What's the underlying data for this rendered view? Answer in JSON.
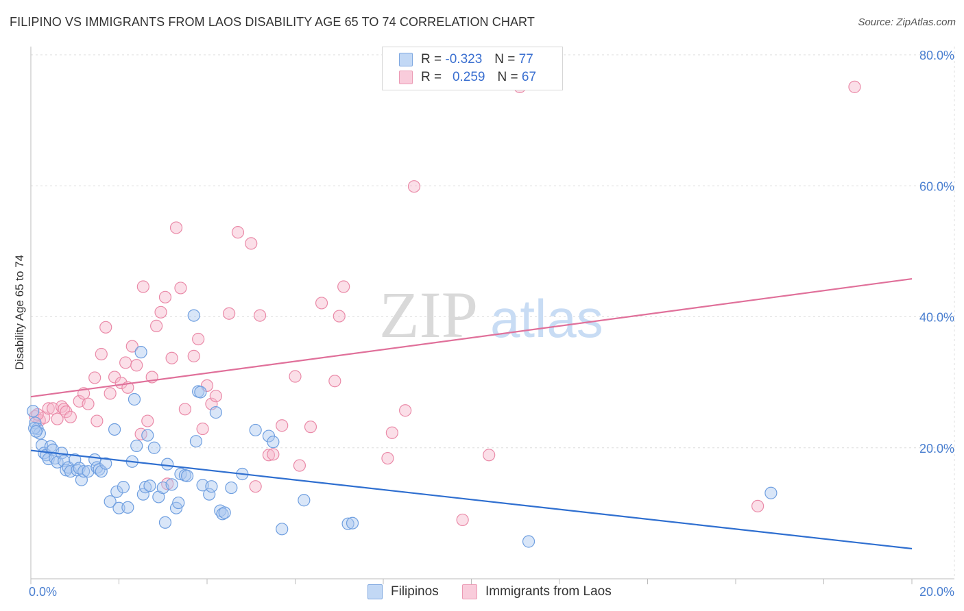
{
  "title": "FILIPINO VS IMMIGRANTS FROM LAOS DISABILITY AGE 65 TO 74 CORRELATION CHART",
  "source": "Source: ZipAtlas.com",
  "watermark": {
    "zip": "ZIP",
    "atlas": "atlas"
  },
  "colors": {
    "blue_fill": "#aac8f0",
    "blue_stroke": "#6f9fe0",
    "blue_line": "#2f6fd0",
    "pink_fill": "#f6b8cc",
    "pink_stroke": "#ea8aa8",
    "pink_line": "#e0709a",
    "grid": "#dcdcdc",
    "tick_text": "#4a7fd0"
  },
  "legend": {
    "r_label": "R =",
    "n_label": "N =",
    "rows": [
      {
        "r": "-0.323",
        "n": "77"
      },
      {
        "r": "0.259",
        "n": "67"
      }
    ]
  },
  "bottom_legend": [
    "Filipinos",
    "Immigrants from Laos"
  ],
  "chart_data": {
    "type": "scatter",
    "xlabel": "",
    "ylabel": "Disability Age 65 to 74",
    "xlim": [
      0,
      20
    ],
    "ylim": [
      0,
      80
    ],
    "x_ticks": [
      {
        "value": 0,
        "label": "0.0%"
      },
      {
        "value": 20,
        "label": "20.0%"
      }
    ],
    "y_ticks": [
      {
        "value": 20,
        "label": "20.0%"
      },
      {
        "value": 40,
        "label": "40.0%"
      },
      {
        "value": 60,
        "label": "60.0%"
      },
      {
        "value": 80,
        "label": "80.0%"
      }
    ],
    "grid": true,
    "series": [
      {
        "name": "Filipinos",
        "color": "#aac8f0",
        "trend": {
          "x": [
            0,
            20
          ],
          "y": [
            19.6,
            4.6
          ]
        },
        "points": [
          [
            0.05,
            25.6
          ],
          [
            0.1,
            23.8
          ],
          [
            0.15,
            22.9
          ],
          [
            0.2,
            22.2
          ],
          [
            0.25,
            20.4
          ],
          [
            0.3,
            19.2
          ],
          [
            0.35,
            18.9
          ],
          [
            0.4,
            18.3
          ],
          [
            0.45,
            20.2
          ],
          [
            0.5,
            19.7
          ],
          [
            0.55,
            18.4
          ],
          [
            0.6,
            17.8
          ],
          [
            0.7,
            19.2
          ],
          [
            0.75,
            18.0
          ],
          [
            0.8,
            16.6
          ],
          [
            0.85,
            17.0
          ],
          [
            0.9,
            16.4
          ],
          [
            1.0,
            18.2
          ],
          [
            1.05,
            16.6
          ],
          [
            1.1,
            16.9
          ],
          [
            1.15,
            15.1
          ],
          [
            1.2,
            16.4
          ],
          [
            1.3,
            16.4
          ],
          [
            1.45,
            18.2
          ],
          [
            1.5,
            17.0
          ],
          [
            1.55,
            16.7
          ],
          [
            1.6,
            16.4
          ],
          [
            1.7,
            17.6
          ],
          [
            1.8,
            11.8
          ],
          [
            1.9,
            22.8
          ],
          [
            1.95,
            13.3
          ],
          [
            2.0,
            10.8
          ],
          [
            2.1,
            14.0
          ],
          [
            2.2,
            10.9
          ],
          [
            2.3,
            17.9
          ],
          [
            2.35,
            27.4
          ],
          [
            2.4,
            20.3
          ],
          [
            2.5,
            34.6
          ],
          [
            2.55,
            12.9
          ],
          [
            2.6,
            14.0
          ],
          [
            2.65,
            21.9
          ],
          [
            2.7,
            14.2
          ],
          [
            2.8,
            20.0
          ],
          [
            2.9,
            12.5
          ],
          [
            3.0,
            13.9
          ],
          [
            3.05,
            8.6
          ],
          [
            3.1,
            17.5
          ],
          [
            3.2,
            14.4
          ],
          [
            3.3,
            10.8
          ],
          [
            3.35,
            11.6
          ],
          [
            3.4,
            16.0
          ],
          [
            3.5,
            15.8
          ],
          [
            3.55,
            15.7
          ],
          [
            3.7,
            40.2
          ],
          [
            3.75,
            21.0
          ],
          [
            3.8,
            28.6
          ],
          [
            3.85,
            28.5
          ],
          [
            3.9,
            14.3
          ],
          [
            4.05,
            12.9
          ],
          [
            4.1,
            14.1
          ],
          [
            4.2,
            25.4
          ],
          [
            4.3,
            10.4
          ],
          [
            4.35,
            9.9
          ],
          [
            4.4,
            10.1
          ],
          [
            4.55,
            13.9
          ],
          [
            4.8,
            16.0
          ],
          [
            5.1,
            22.7
          ],
          [
            5.4,
            21.8
          ],
          [
            5.5,
            20.9
          ],
          [
            5.7,
            7.6
          ],
          [
            6.2,
            12.0
          ],
          [
            7.2,
            8.4
          ],
          [
            7.3,
            8.5
          ],
          [
            11.3,
            5.7
          ],
          [
            16.8,
            13.1
          ],
          [
            0.08,
            23.0
          ],
          [
            0.12,
            22.5
          ]
        ],
        "n": 77
      },
      {
        "name": "Immigrants from Laos",
        "color": "#f6b8cc",
        "trend": {
          "x": [
            0,
            20
          ],
          "y": [
            27.8,
            45.8
          ]
        },
        "points": [
          [
            0.1,
            24.8
          ],
          [
            0.2,
            24.2
          ],
          [
            0.3,
            24.6
          ],
          [
            0.4,
            26.0
          ],
          [
            0.5,
            26.0
          ],
          [
            0.6,
            24.4
          ],
          [
            0.7,
            26.3
          ],
          [
            0.75,
            25.9
          ],
          [
            0.8,
            25.5
          ],
          [
            0.9,
            24.7
          ],
          [
            1.1,
            27.1
          ],
          [
            1.2,
            28.3
          ],
          [
            1.3,
            26.7
          ],
          [
            1.45,
            30.7
          ],
          [
            1.5,
            24.1
          ],
          [
            1.6,
            34.3
          ],
          [
            1.7,
            38.4
          ],
          [
            1.8,
            28.3
          ],
          [
            1.9,
            30.8
          ],
          [
            2.05,
            29.9
          ],
          [
            2.15,
            33.0
          ],
          [
            2.2,
            29.2
          ],
          [
            2.3,
            35.5
          ],
          [
            2.4,
            32.6
          ],
          [
            2.5,
            22.1
          ],
          [
            2.55,
            44.6
          ],
          [
            2.65,
            24.1
          ],
          [
            2.75,
            30.8
          ],
          [
            2.85,
            38.6
          ],
          [
            2.95,
            40.7
          ],
          [
            3.05,
            43.0
          ],
          [
            3.1,
            14.5
          ],
          [
            3.2,
            33.7
          ],
          [
            3.3,
            53.6
          ],
          [
            3.4,
            44.4
          ],
          [
            3.5,
            25.9
          ],
          [
            3.7,
            34.0
          ],
          [
            3.8,
            36.6
          ],
          [
            3.9,
            22.9
          ],
          [
            4.0,
            29.5
          ],
          [
            4.1,
            26.7
          ],
          [
            4.2,
            27.9
          ],
          [
            4.5,
            40.5
          ],
          [
            4.7,
            52.9
          ],
          [
            5.0,
            51.2
          ],
          [
            5.1,
            14.1
          ],
          [
            5.2,
            40.2
          ],
          [
            5.4,
            18.9
          ],
          [
            5.5,
            19.0
          ],
          [
            5.7,
            23.4
          ],
          [
            6.0,
            30.9
          ],
          [
            6.1,
            17.3
          ],
          [
            6.35,
            23.2
          ],
          [
            6.6,
            42.1
          ],
          [
            6.9,
            30.2
          ],
          [
            7.0,
            40.1
          ],
          [
            7.1,
            44.6
          ],
          [
            8.1,
            18.4
          ],
          [
            8.2,
            22.3
          ],
          [
            8.5,
            25.7
          ],
          [
            8.7,
            59.9
          ],
          [
            9.8,
            9.0
          ],
          [
            10.4,
            18.9
          ],
          [
            11.1,
            75.1
          ],
          [
            16.5,
            11.1
          ],
          [
            18.7,
            75.1
          ],
          [
            0.15,
            25.1
          ]
        ],
        "n": 67
      }
    ]
  }
}
